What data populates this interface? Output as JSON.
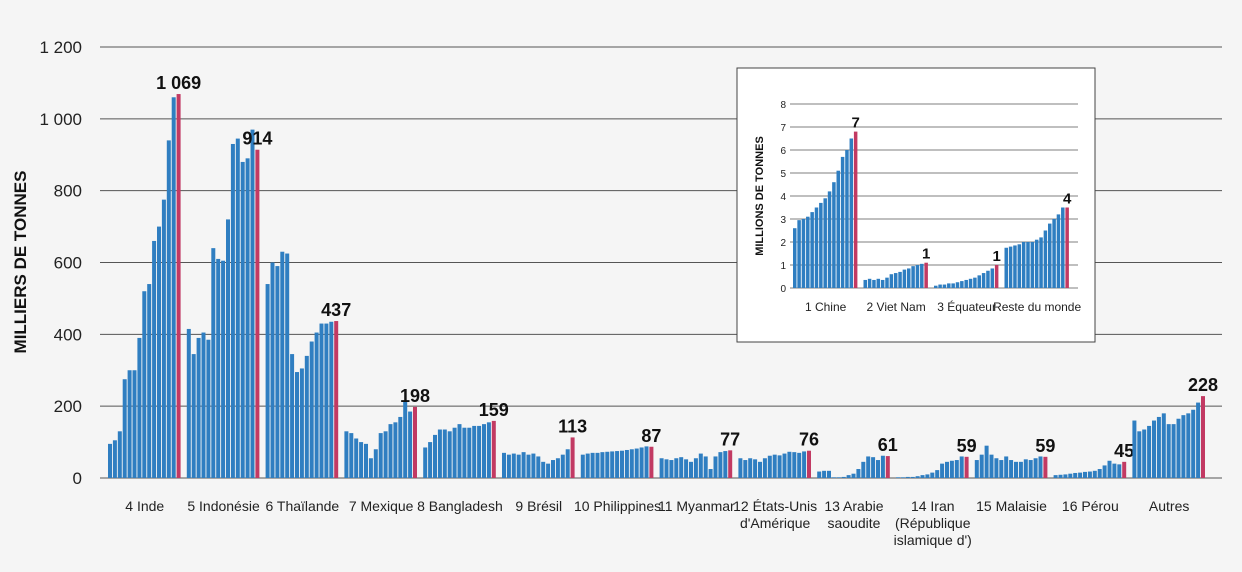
{
  "colors": {
    "bar": "#2f7ec1",
    "last_bar": "#c23a63",
    "grid": "#555555",
    "background": "#f5f5f5"
  },
  "chart_data": [
    {
      "type": "bar",
      "ylabel": "MILLIERS DE TONNES",
      "ylim": [
        0,
        1200
      ],
      "yticks": [
        0,
        200,
        400,
        600,
        800,
        1000,
        1200
      ],
      "ytick_labels": [
        "0",
        "200",
        "400",
        "600",
        "800",
        "1 000",
        "1 200"
      ],
      "grid": true,
      "groups": [
        {
          "label": [
            "4 Inde"
          ],
          "last_label": "1 069",
          "values": [
            95,
            105,
            130,
            275,
            300,
            300,
            390,
            520,
            540,
            660,
            700,
            775,
            940,
            1060,
            1069
          ]
        },
        {
          "label": [
            "5 Indonésie"
          ],
          "last_label": "914",
          "values": [
            415,
            345,
            390,
            405,
            385,
            640,
            610,
            605,
            720,
            930,
            945,
            880,
            890,
            970,
            914
          ]
        },
        {
          "label": [
            "6 Thaïlande"
          ],
          "last_label": "437",
          "values": [
            540,
            600,
            590,
            630,
            625,
            345,
            295,
            305,
            340,
            380,
            405,
            430,
            430,
            435,
            437
          ]
        },
        {
          "label": [
            "7 Mexique"
          ],
          "last_label": "198",
          "values": [
            130,
            125,
            110,
            100,
            95,
            55,
            80,
            125,
            130,
            150,
            155,
            170,
            215,
            185,
            198
          ]
        },
        {
          "label": [
            "8 Bangladesh"
          ],
          "last_label": "159",
          "values": [
            85,
            100,
            120,
            135,
            135,
            130,
            140,
            150,
            140,
            140,
            145,
            145,
            150,
            155,
            159
          ]
        },
        {
          "label": [
            "9 Brésil"
          ],
          "last_label": "113",
          "values": [
            70,
            65,
            68,
            65,
            72,
            65,
            68,
            60,
            45,
            40,
            50,
            55,
            65,
            80,
            113
          ]
        },
        {
          "label": [
            "10 Philippines"
          ],
          "last_label": "87",
          "values": [
            65,
            68,
            70,
            70,
            72,
            73,
            74,
            75,
            76,
            78,
            80,
            82,
            85,
            88,
            87
          ]
        },
        {
          "label": [
            "11 Myanmar"
          ],
          "last_label": "77",
          "values": [
            55,
            52,
            50,
            55,
            58,
            52,
            45,
            55,
            68,
            60,
            25,
            60,
            72,
            75,
            77
          ]
        },
        {
          "label": [
            "12 États-Unis",
            "d'Amérique"
          ],
          "last_label": "76",
          "values": [
            55,
            50,
            55,
            52,
            45,
            55,
            62,
            65,
            63,
            68,
            73,
            72,
            70,
            74,
            76
          ]
        },
        {
          "label": [
            "13 Arabie",
            "saoudite"
          ],
          "last_label": "61",
          "values": [
            18,
            20,
            20,
            2,
            2,
            3,
            8,
            12,
            25,
            45,
            60,
            58,
            50,
            62,
            61
          ]
        },
        {
          "label": [
            "14 Iran",
            "(République",
            "islamique d')"
          ],
          "last_label": "59",
          "values": [
            2,
            2,
            3,
            3,
            5,
            8,
            10,
            15,
            22,
            40,
            45,
            48,
            50,
            60,
            59
          ]
        },
        {
          "label": [
            "15 Malaisie"
          ],
          "last_label": "59",
          "values": [
            50,
            65,
            90,
            65,
            55,
            50,
            60,
            50,
            45,
            45,
            52,
            50,
            55,
            60,
            59
          ]
        },
        {
          "label": [
            "16 Pérou"
          ],
          "last_label": "45",
          "values": [
            8,
            9,
            10,
            12,
            14,
            15,
            17,
            18,
            20,
            25,
            35,
            48,
            40,
            38,
            45
          ]
        },
        {
          "label": [
            "Autres"
          ],
          "last_label": "228",
          "values": [
            160,
            130,
            135,
            145,
            160,
            170,
            180,
            150,
            150,
            165,
            175,
            180,
            190,
            210,
            228
          ]
        }
      ]
    },
    {
      "type": "bar",
      "ylabel": "MILLIONS DE TONNES",
      "ylim": [
        0,
        8
      ],
      "yticks": [
        0,
        1,
        2,
        3,
        4,
        5,
        6,
        7,
        8
      ],
      "ytick_labels": [
        "0",
        "1",
        "2",
        "3",
        "4",
        "5",
        "6",
        "7",
        "8"
      ],
      "grid": true,
      "groups": [
        {
          "label": [
            "1 Chine"
          ],
          "last_label": "7",
          "values": [
            2.6,
            2.95,
            3.0,
            3.1,
            3.3,
            3.5,
            3.7,
            3.9,
            4.2,
            4.6,
            5.1,
            5.7,
            6.0,
            6.5,
            6.8
          ]
        },
        {
          "label": [
            "2 Viet Nam"
          ],
          "last_label": "1",
          "values": [
            0.35,
            0.4,
            0.35,
            0.4,
            0.35,
            0.45,
            0.6,
            0.65,
            0.7,
            0.8,
            0.85,
            0.95,
            1.0,
            1.05,
            1.1
          ]
        },
        {
          "label": [
            "3 Équateur"
          ],
          "last_label": "1",
          "values": [
            0.1,
            0.15,
            0.15,
            0.2,
            0.2,
            0.25,
            0.3,
            0.35,
            0.4,
            0.45,
            0.55,
            0.65,
            0.75,
            0.85,
            1.0
          ]
        },
        {
          "label": [
            "Reste du monde"
          ],
          "last_label": "4",
          "values": [
            1.75,
            1.8,
            1.85,
            1.9,
            2.0,
            2.0,
            2.0,
            2.1,
            2.2,
            2.5,
            2.8,
            3.0,
            3.2,
            3.5,
            3.5
          ]
        }
      ]
    }
  ]
}
